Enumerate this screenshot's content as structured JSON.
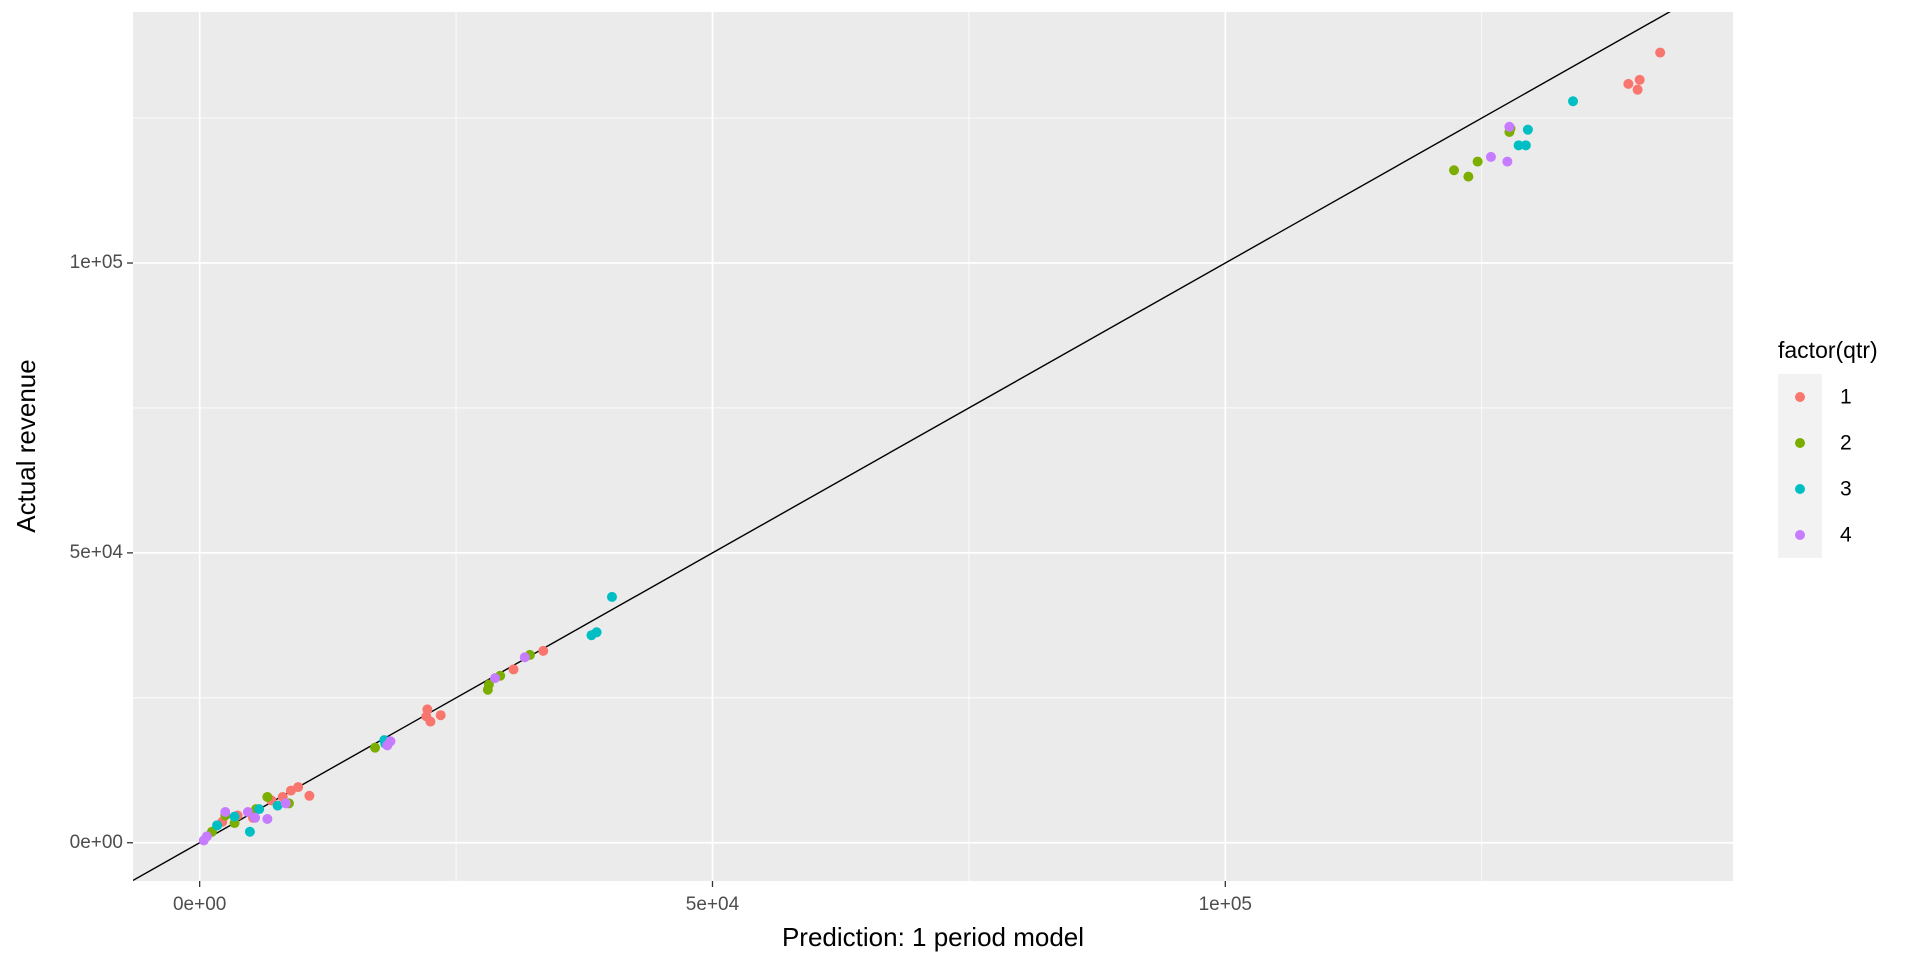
{
  "chart_data": {
    "type": "scatter",
    "x_label": "Prediction: 1 period model",
    "y_label": "Actual revenue",
    "legend_title": "factor(qtr)",
    "legend_position": "right",
    "grid": true,
    "xlim": [
      -6500,
      149500
    ],
    "ylim": [
      -6600,
      143300
    ],
    "xticks": [
      {
        "value": 0,
        "label": "0e+00"
      },
      {
        "value": 50000,
        "label": "5e+04"
      },
      {
        "value": 100000,
        "label": "1e+05"
      }
    ],
    "yticks": [
      {
        "value": 0,
        "label": "0e+00"
      },
      {
        "value": 50000,
        "label": "5e+04"
      },
      {
        "value": 100000,
        "label": "1e+05"
      }
    ],
    "xminor_ticks": [
      25000,
      75000,
      125000
    ],
    "yminor_ticks": [
      25000,
      75000,
      125000
    ],
    "reference_line": {
      "slope": 1,
      "intercept": 0,
      "color": "#000000"
    },
    "series": [
      {
        "name": "1",
        "color": "#F8766D",
        "x": [
          142400,
          139300,
          140400,
          140200,
          33500,
          30600,
          22200,
          22500,
          23500,
          22100,
          10700,
          9600,
          8900,
          8100,
          7000,
          5200,
          3700,
          2200
        ],
        "values": [
          136300,
          130900,
          131600,
          129900,
          33100,
          29900,
          23000,
          20900,
          22000,
          21800,
          8100,
          9600,
          9000,
          7900,
          7300,
          4300,
          4700,
          3600
        ]
      },
      {
        "name": "2",
        "color": "#7CAE00",
        "x": [
          122300,
          123700,
          124600,
          127700,
          127800,
          32200,
          29300,
          28100,
          28200,
          17100,
          6600,
          8700,
          3400,
          1200,
          5500,
          2500
        ],
        "values": [
          116000,
          114900,
          117500,
          122600,
          123200,
          32400,
          28800,
          26400,
          27300,
          16400,
          7900,
          6800,
          3400,
          1900,
          5800,
          4700
        ]
      },
      {
        "name": "3",
        "color": "#00BFC4",
        "x": [
          133900,
          129500,
          128600,
          129300,
          40200,
          38700,
          38200,
          18000,
          18100,
          1700,
          4900,
          5800,
          3400,
          7600
        ],
        "values": [
          127900,
          123000,
          120300,
          120300,
          42400,
          36300,
          35800,
          17700,
          17100,
          3000,
          1900,
          5800,
          4500,
          6400
        ]
      },
      {
        "name": "4",
        "color": "#C77CFF",
        "x": [
          127700,
          125900,
          127500,
          28800,
          31700,
          18600,
          18300,
          400,
          700,
          2500,
          6600,
          4700,
          8400,
          5400
        ],
        "values": [
          123500,
          118300,
          117500,
          28400,
          32000,
          17500,
          16800,
          400,
          1100,
          5300,
          4100,
          5300,
          6800,
          4300
        ]
      }
    ]
  }
}
